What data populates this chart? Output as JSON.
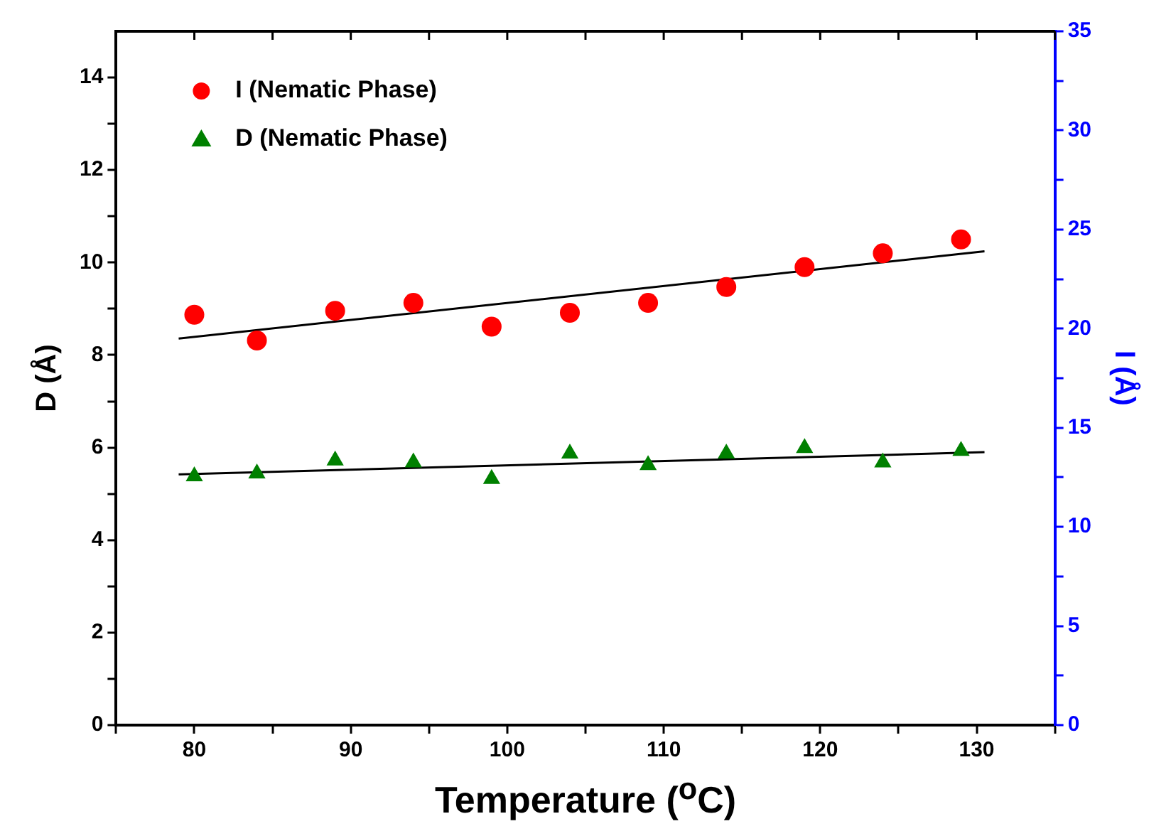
{
  "chart_data": {
    "type": "scatter",
    "xlabel": "Temperature ($^{o}$C)",
    "ylabel": "D (Å)",
    "y2label": "I (Å)",
    "legend": "top left",
    "grid": false,
    "xlim": [
      75,
      135
    ],
    "xticks": [
      {
        "value": 75,
        "label": null
      },
      80,
      {
        "value": 85,
        "label": null
      },
      90,
      {
        "value": 95,
        "label": null
      },
      100,
      {
        "value": 105,
        "label": null
      },
      110,
      {
        "value": 115,
        "label": null
      },
      120,
      {
        "value": 125,
        "label": null
      },
      130,
      {
        "value": 135,
        "label": null
      }
    ],
    "ylim": [
      0,
      15
    ],
    "yticks": [
      0,
      {
        "value": 1,
        "label": null
      },
      2,
      {
        "value": 3,
        "label": null
      },
      4,
      {
        "value": 5,
        "label": null
      },
      6,
      {
        "value": 7,
        "label": null
      },
      8,
      {
        "value": 9,
        "label": null
      },
      10,
      {
        "value": 11,
        "label": null
      },
      12,
      {
        "value": 13,
        "label": null
      },
      14
    ],
    "y2lim": [
      0,
      35
    ],
    "y2ticks": [
      0,
      {
        "value": 2.5,
        "label": null
      },
      5,
      {
        "value": 7.5,
        "label": null
      },
      10,
      {
        "value": 12.5,
        "label": null
      },
      15,
      {
        "value": 17.5,
        "label": null
      },
      20,
      {
        "value": 22.5,
        "label": null
      },
      25,
      {
        "value": 27.5,
        "label": null
      },
      30,
      {
        "value": 32.5,
        "label": null
      },
      35
    ],
    "series": [
      {
        "name": "I (Nematic Phase)",
        "type": "scatter",
        "axis": "y2",
        "color": "#ff0000",
        "marker": "circle",
        "x": [
          80,
          84,
          89,
          94,
          99,
          104,
          109,
          114,
          119,
          124,
          129
        ],
        "values": [
          20.7,
          19.4,
          20.9,
          21.3,
          20.1,
          20.8,
          21.3,
          22.1,
          23.1,
          23.8,
          24.5
        ]
      },
      {
        "name": "D (Nematic Phase)",
        "type": "scatter",
        "color": "#008000",
        "marker": "triangle",
        "x": [
          80,
          84,
          89,
          94,
          99,
          104,
          109,
          114,
          119,
          124,
          129
        ],
        "values": [
          5.38,
          5.44,
          5.72,
          5.68,
          5.32,
          5.87,
          5.62,
          5.87,
          5.99,
          5.68,
          5.93
        ]
      },
      {
        "type": "line",
        "axis": "y2",
        "color": "#000000",
        "marker": "none",
        "line_style": "solid",
        "x": [
          79,
          130.5
        ],
        "values": [
          19.5,
          23.9
        ]
      },
      {
        "type": "line",
        "color": "#000000",
        "marker": "none",
        "line_style": "solid",
        "x": [
          79,
          130.5
        ],
        "values": [
          5.42,
          5.9
        ]
      }
    ]
  }
}
